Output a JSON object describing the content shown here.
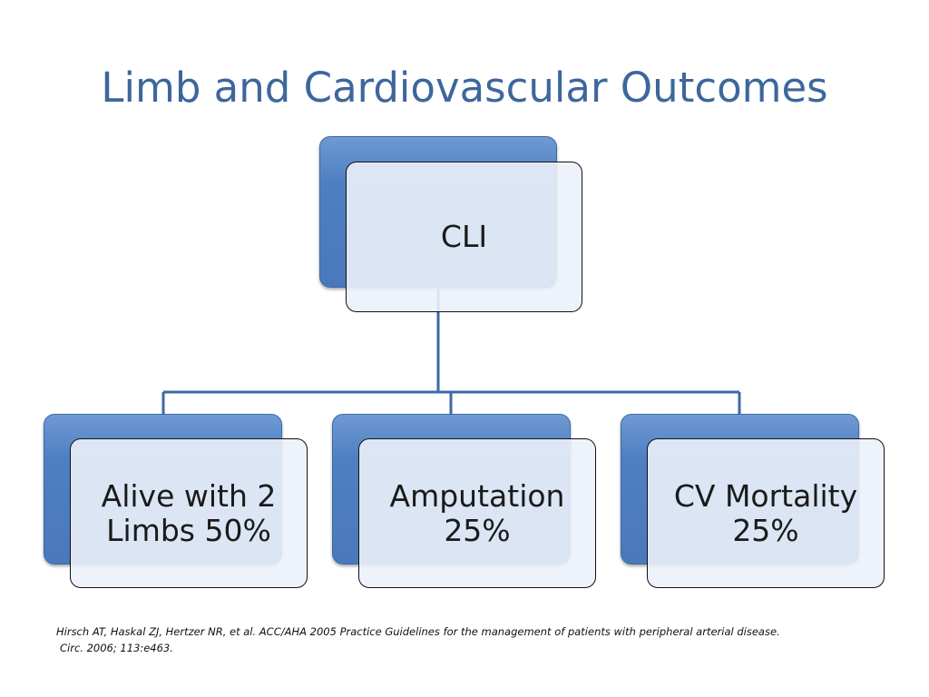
{
  "slide": {
    "title": "Limb and Cardiovascular Outcomes"
  },
  "diagram": {
    "root": {
      "label": "CLI"
    },
    "children": [
      {
        "label": "Alive with 2\nLimbs 50%"
      },
      {
        "label": "Amputation\n25%"
      },
      {
        "label": "CV Mortality\n25%"
      }
    ]
  },
  "citation": {
    "line1": "Hirsch AT, Haskal ZJ, Hertzer NR, et al. ACC/AHA 2005 Practice Guidelines for the management of patients with peripheral arterial disease.",
    "line2": "Circ. 2006; 113:e463."
  },
  "colors": {
    "title": "#3d679c",
    "node_back": "#4a79bb",
    "node_front": "#ecf1fa",
    "connector": "#3d6aa8"
  }
}
